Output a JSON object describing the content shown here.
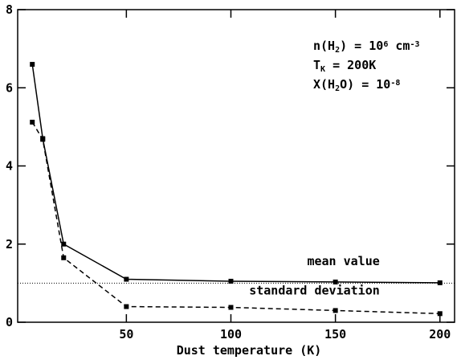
{
  "chart_data": {
    "type": "line",
    "x_label": "Dust temperature (K)",
    "xlim": [
      -2,
      207
    ],
    "ylim": [
      0,
      8
    ],
    "xticks": [
      50,
      100,
      150,
      200
    ],
    "yticks": [
      0,
      2,
      4,
      6,
      8
    ],
    "series": [
      {
        "name": "mean value",
        "color": "#000000",
        "dash": "solid",
        "x": [
          5,
          10,
          20,
          50,
          100,
          150,
          200
        ],
        "values": [
          6.6,
          4.7,
          2.0,
          1.1,
          1.05,
          1.03,
          1.01
        ]
      },
      {
        "name": "standard deviation",
        "color": "#000000",
        "dash": "dashed",
        "x": [
          5,
          10,
          20,
          50,
          100,
          150,
          200
        ],
        "values": [
          5.12,
          4.68,
          1.65,
          0.4,
          0.38,
          0.3,
          0.22
        ]
      }
    ],
    "reference_line": 1,
    "annotations": [
      [
        {
          "text": "n(H"
        },
        {
          "text": "2",
          "script": "sub"
        },
        {
          "text": ") = 10"
        },
        {
          "text": "6",
          "script": "sup"
        },
        {
          "text": " cm"
        },
        {
          "text": "-3",
          "script": "sup"
        }
      ],
      [
        {
          "text": "T"
        },
        {
          "text": "K",
          "script": "sub"
        },
        {
          "text": " = 200K"
        }
      ],
      [
        {
          "text": "X(H"
        },
        {
          "text": "2",
          "script": "sub"
        },
        {
          "text": "O) = 10"
        },
        {
          "text": "-8",
          "script": "sup"
        }
      ]
    ]
  }
}
